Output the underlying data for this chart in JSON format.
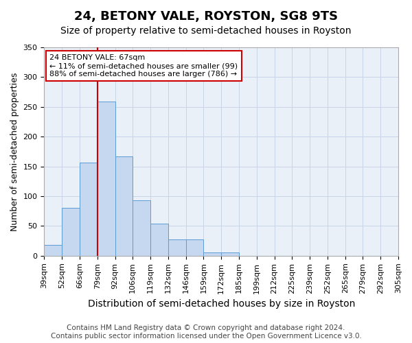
{
  "title": "24, BETONY VALE, ROYSTON, SG8 9TS",
  "subtitle": "Size of property relative to semi-detached houses in Royston",
  "xlabel": "Distribution of semi-detached houses by size in Royston",
  "ylabel": "Number of semi-detached properties",
  "footer_line1": "Contains HM Land Registry data © Crown copyright and database right 2024.",
  "footer_line2": "Contains public sector information licensed under the Open Government Licence v3.0.",
  "annotation_line1": "24 BETONY VALE: 67sqm",
  "annotation_line2": "← 11% of semi-detached houses are smaller (99)",
  "annotation_line3": "88% of semi-detached houses are larger (786) →",
  "bins": [
    "39sqm",
    "52sqm",
    "66sqm",
    "79sqm",
    "92sqm",
    "106sqm",
    "119sqm",
    "132sqm",
    "146sqm",
    "159sqm",
    "172sqm",
    "185sqm",
    "199sqm",
    "212sqm",
    "225sqm",
    "239sqm",
    "252sqm",
    "265sqm",
    "279sqm",
    "292sqm",
    "305sqm"
  ],
  "values": [
    18,
    80,
    157,
    259,
    167,
    93,
    54,
    27,
    27,
    5,
    5,
    0,
    0,
    0,
    0,
    0,
    0,
    0,
    0,
    0
  ],
  "property_bin_index": 2,
  "bar_color": "#c5d8f0",
  "bar_edge_color": "#5b9bd5",
  "highlight_line_color": "#cc0000",
  "annotation_box_edge_color": "#cc0000",
  "background_color": "#ffffff",
  "axes_bg_color": "#eaf0f8",
  "grid_color": "#c8d4e8",
  "ylim": [
    0,
    350
  ],
  "yticks": [
    0,
    50,
    100,
    150,
    200,
    250,
    300,
    350
  ],
  "title_fontsize": 13,
  "subtitle_fontsize": 10,
  "xlabel_fontsize": 10,
  "ylabel_fontsize": 9,
  "tick_fontsize": 8,
  "annotation_fontsize": 8,
  "footer_fontsize": 7.5
}
